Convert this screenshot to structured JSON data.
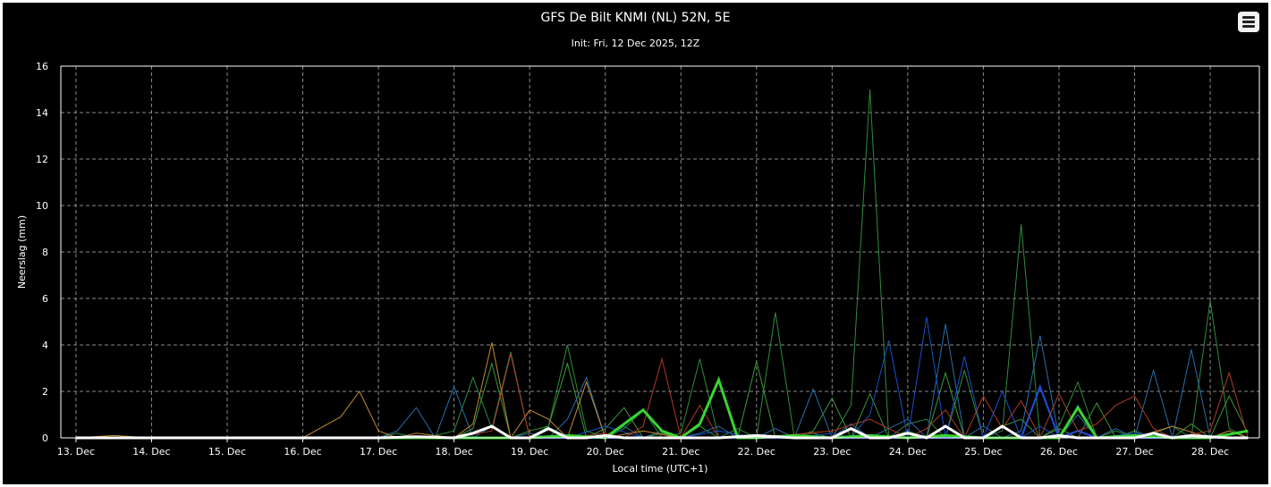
{
  "header": {
    "title": "GFS De Bilt KNMI (NL) 52N, 5E",
    "subtitle": "Init: Fri, 12 Dec 2025, 12Z",
    "menu_icon": "hamburger-menu-icon"
  },
  "colors": {
    "background": "#000000",
    "grid": "#8a8a8a",
    "text": "#ffffff",
    "highlight_run": "#39d431",
    "ensemble_mean": "#ffffff"
  },
  "chart_data": {
    "type": "line",
    "title": "GFS De Bilt KNMI (NL) 52N, 5E",
    "subtitle": "Init: Fri, 12 Dec 2025, 12Z",
    "xlabel": "Local time (UTC+1)",
    "ylabel": "Neerslag (mm)",
    "ylim": [
      0,
      16
    ],
    "yticks": [
      0,
      2,
      4,
      6,
      8,
      10,
      12,
      14,
      16
    ],
    "xlim": [
      -0.2,
      15.65
    ],
    "xticks": [
      0,
      1,
      2,
      3,
      4,
      5,
      6,
      7,
      8,
      9,
      10,
      11,
      12,
      13,
      14,
      15
    ],
    "xtick_labels": [
      "13. Dec",
      "14. Dec",
      "15. Dec",
      "16. Dec",
      "17. Dec",
      "18. Dec",
      "19. Dec",
      "20. Dec",
      "21. Dec",
      "22. Dec",
      "23. Dec",
      "24. Dec",
      "25. Dec",
      "26. Dec",
      "27. Dec",
      "28. Dec"
    ],
    "x_unit_note": "x values are days after 13 Dec 00:00 local time",
    "grid": true,
    "legend": "none",
    "series": [
      {
        "color": "#2e8b3e",
        "width": 1,
        "x": [
          0,
          3,
          4,
          4.25,
          4.5,
          4.75,
          5,
          5.25,
          5.5,
          5.75,
          6,
          6.25,
          6.5,
          6.75,
          7,
          7.25,
          7.5,
          7.75,
          8,
          8.25,
          8.5,
          8.75,
          9,
          9.25,
          9.5,
          9.75,
          10,
          10.25,
          10.5,
          10.75,
          11,
          11.25,
          11.5,
          11.75,
          12,
          12.25,
          12.5,
          12.75,
          13,
          13.25,
          13.5,
          13.75,
          14,
          14.25,
          14.5,
          14.75,
          15,
          15.25,
          15.5
        ],
        "y": [
          0,
          0,
          0,
          0.2,
          0,
          0.1,
          0.3,
          2.6,
          0.4,
          3.7,
          0,
          0.5,
          4.0,
          0.3,
          0,
          0.4,
          1.2,
          0,
          0.2,
          3.4,
          0,
          0.4,
          0,
          5.4,
          0,
          0.2,
          0,
          1.4,
          15.0,
          0,
          0.6,
          0.8,
          0,
          2.9,
          0,
          0.3,
          9.2,
          0,
          0.5,
          2.4,
          0,
          0.3,
          0,
          0.2,
          0.5,
          0,
          5.9,
          0.4,
          0
        ]
      },
      {
        "color": "#3a9a3a",
        "width": 1,
        "x": [
          0,
          3,
          4,
          4.5,
          5,
          5.25,
          5.5,
          5.75,
          6,
          6.25,
          6.5,
          6.75,
          7,
          7.25,
          7.5,
          7.75,
          8,
          8.25,
          8.5,
          8.75,
          9,
          9.25,
          9.5,
          9.75,
          10,
          10.25,
          10.5,
          10.75,
          11,
          11.25,
          11.5,
          11.75,
          12,
          12.25,
          12.5,
          12.75,
          13,
          13.25,
          13.5,
          13.75,
          14,
          14.25,
          14.5,
          14.75,
          15,
          15.25,
          15.5
        ],
        "y": [
          0,
          0,
          0,
          0,
          0,
          0.4,
          3.2,
          0,
          0.3,
          0.5,
          3.2,
          0,
          0.4,
          1.3,
          0,
          0.2,
          0,
          0.5,
          0,
          0,
          3.3,
          0,
          0,
          0.3,
          1.7,
          0,
          1.9,
          0,
          0.3,
          0,
          2.8,
          0,
          0,
          0.5,
          0.8,
          0,
          0.4,
          0,
          1.5,
          0,
          0.3,
          0,
          0,
          0.6,
          0,
          1.8,
          0.2
        ]
      },
      {
        "color": "#2a6fa8",
        "width": 1,
        "x": [
          0,
          4,
          4.25,
          4.5,
          4.75,
          5,
          5.25,
          5.5,
          5.75,
          6,
          6.25,
          6.5,
          6.75,
          7,
          7.25,
          7.5,
          7.75,
          8,
          8.25,
          8.5,
          8.75,
          9,
          9.25,
          9.5,
          9.75,
          10,
          10.25,
          10.5,
          10.75,
          11,
          11.25,
          11.5,
          11.75,
          12,
          12.25,
          12.5,
          12.75,
          13,
          13.25,
          13.5,
          13.75,
          14,
          14.25,
          14.5,
          14.75,
          15,
          15.25,
          15.5
        ],
        "y": [
          0,
          0,
          0.3,
          1.3,
          0,
          2.2,
          0,
          0.5,
          0,
          0.2,
          0,
          0.8,
          2.6,
          0,
          0.5,
          0,
          0.3,
          0,
          0.2,
          0.5,
          0,
          0,
          0.4,
          0,
          2.1,
          0,
          0.6,
          0,
          0.4,
          0.8,
          0,
          4.9,
          0,
          0.5,
          0,
          0.3,
          4.4,
          0,
          1.0,
          0,
          0.4,
          0,
          2.9,
          0,
          3.8,
          0,
          0.3,
          0
        ]
      },
      {
        "color": "#1a50c8",
        "width": 1,
        "x": [
          0,
          6,
          6.5,
          7,
          7.5,
          8,
          8.5,
          9,
          9.5,
          10,
          10.25,
          10.5,
          10.75,
          11,
          11.25,
          11.5,
          11.75,
          12,
          12.25,
          12.5,
          12.75,
          13,
          13.25,
          13.5,
          14,
          14.5,
          15,
          15.5
        ],
        "y": [
          0,
          0,
          0,
          0.5,
          0,
          0,
          0.3,
          0,
          0,
          0.2,
          0,
          1.0,
          4.2,
          0,
          5.2,
          0,
          3.5,
          0,
          2.0,
          0,
          0.5,
          0,
          1.4,
          0,
          0.2,
          0,
          0,
          0
        ]
      },
      {
        "color": "#2050e0",
        "width": 2,
        "x": [
          0,
          12.5,
          12.75,
          13,
          13.25,
          13.5,
          15.5
        ],
        "y": [
          0,
          0,
          2.2,
          0,
          0.3,
          0,
          0
        ]
      },
      {
        "color": "#c08a30",
        "width": 1,
        "x": [
          0,
          0.5,
          1,
          3,
          3.5,
          3.75,
          4,
          4.25,
          4.5,
          4.75,
          5,
          5.25,
          5.5,
          5.75,
          6,
          6.25,
          6.5,
          6.75,
          7,
          7.5,
          8,
          9,
          10,
          11,
          12,
          13,
          14,
          14.5,
          15,
          15.25,
          15.5
        ],
        "y": [
          0,
          0.1,
          0,
          0,
          0.9,
          2.0,
          0.3,
          0,
          0.2,
          0.1,
          0,
          0.6,
          4.1,
          0,
          1.2,
          0.8,
          0,
          2.4,
          0,
          0.3,
          0,
          0,
          0,
          0,
          0,
          0,
          0,
          0.5,
          0,
          0.3,
          0
        ]
      },
      {
        "color": "#b03a24",
        "width": 1,
        "x": [
          0,
          5,
          5.5,
          5.75,
          6,
          6.5,
          7,
          7.25,
          7.5,
          7.75,
          8,
          8.25,
          8.5,
          9,
          10,
          10.5,
          11,
          11.25,
          11.5,
          11.75,
          12,
          12.25,
          12.5,
          12.75,
          13,
          13.25,
          13.5,
          13.75,
          14,
          14.25,
          14.5,
          15,
          15.25,
          15.5
        ],
        "y": [
          0,
          0,
          0.3,
          3.6,
          0,
          0,
          0.2,
          0,
          0.5,
          3.4,
          0,
          1.4,
          0,
          0,
          0.3,
          0.8,
          0,
          0.4,
          1.2,
          0,
          1.8,
          0.4,
          1.6,
          0,
          1.9,
          0.3,
          0.6,
          1.4,
          1.8,
          0.4,
          0,
          0.3,
          2.8,
          0
        ]
      },
      {
        "color": "#39d431",
        "width": 3,
        "x": [
          0,
          6,
          6.5,
          7,
          7.5,
          7.75,
          8,
          8.25,
          8.5,
          8.75,
          9,
          9.5,
          10,
          10.5,
          11,
          11.5,
          12,
          12.25,
          12.5,
          12.75,
          13,
          13.25,
          13.5,
          14,
          14.5,
          15,
          15.5
        ],
        "y": [
          0,
          0,
          0.1,
          0,
          1.2,
          0.3,
          0,
          0.6,
          2.5,
          0,
          0,
          0.1,
          0,
          0.1,
          0,
          0.1,
          0,
          0,
          0,
          0,
          0,
          1.3,
          0,
          0.1,
          0,
          0,
          0.3
        ]
      },
      {
        "color": "#ffffff",
        "width": 3,
        "x": [
          0,
          4,
          4.5,
          5,
          5.25,
          5.5,
          5.75,
          6,
          6.25,
          6.5,
          6.75,
          7,
          7.25,
          7.5,
          8,
          8.5,
          9,
          9.5,
          10,
          10.25,
          10.5,
          10.75,
          11,
          11.25,
          11.5,
          11.75,
          12,
          12.25,
          12.5,
          12.75,
          13,
          13.25,
          13.5,
          14,
          14.25,
          14.5,
          14.75,
          15,
          15.25,
          15.5
        ],
        "y": [
          0,
          0,
          0.05,
          0,
          0.2,
          0.5,
          0,
          0,
          0.4,
          0,
          0,
          0.1,
          0,
          0,
          0,
          0,
          0.1,
          0,
          0,
          0.4,
          0,
          0,
          0.2,
          0,
          0.5,
          0,
          0,
          0.5,
          0,
          0,
          0.1,
          0,
          0,
          0,
          0.2,
          0,
          0.1,
          0.05,
          0,
          0
        ]
      }
    ]
  }
}
